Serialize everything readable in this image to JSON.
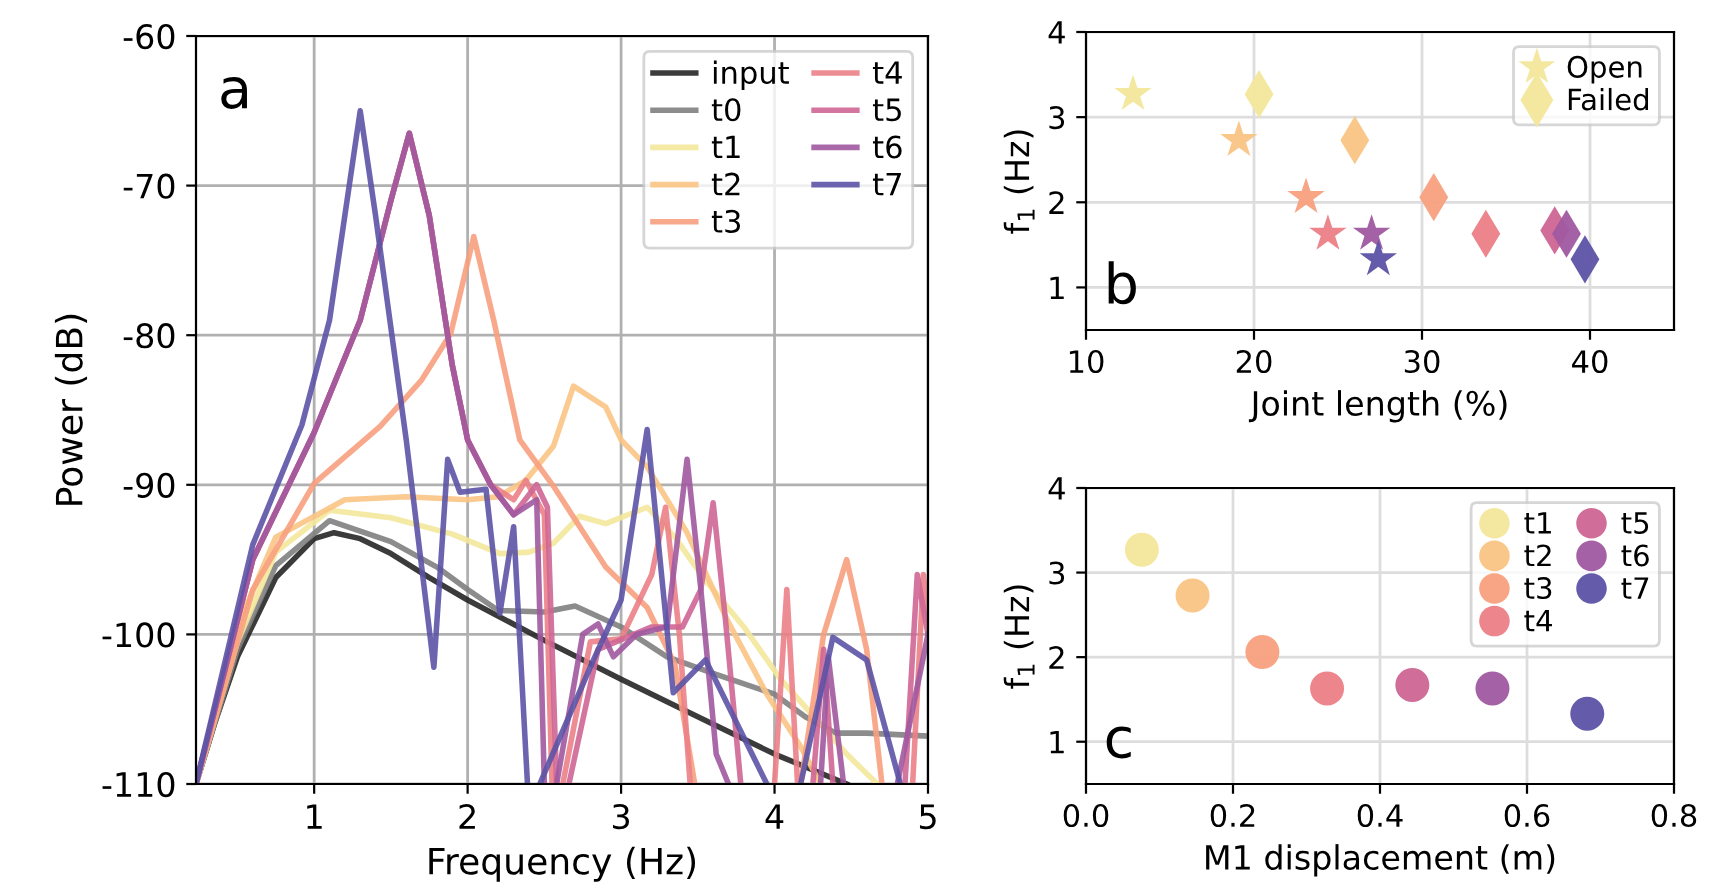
{
  "chart_data": [
    {
      "type": "line",
      "xlabel": "Frequency (Hz)",
      "ylabel": "Power (dB)",
      "xlim": [
        0.23,
        5
      ],
      "ylim": [
        -110,
        -60
      ],
      "xticks": [
        1,
        2,
        3,
        4,
        5
      ],
      "yticks": [
        -110,
        -100,
        -90,
        -80,
        -70,
        -60
      ],
      "grid": true,
      "legend": "top right",
      "annotations": [
        "a"
      ],
      "series": [
        {
          "name": "input",
          "color": "#262626",
          "x": [
            0.23,
            0.35,
            0.5,
            0.75,
            1.0,
            1.13,
            1.3,
            1.5,
            1.75,
            2.0,
            2.5,
            3.0,
            3.5,
            4.0,
            4.47
          ],
          "values": [
            -110,
            -106,
            -101.5,
            -96.2,
            -93.6,
            -93.2,
            -93.6,
            -94.6,
            -96.2,
            -97.7,
            -100.4,
            -103,
            -105.5,
            -108,
            -110
          ]
        },
        {
          "name": "t0",
          "color": "#808080",
          "x": [
            0.23,
            0.5,
            0.75,
            1.1,
            1.5,
            1.8,
            2.0,
            2.2,
            2.5,
            2.7,
            3.0,
            3.3,
            3.6,
            4.0,
            4.2,
            4.4,
            4.6,
            5.0
          ],
          "values": [
            -110,
            -101,
            -95.4,
            -92.4,
            -93.8,
            -95.5,
            -97,
            -98.4,
            -98.5,
            -98.1,
            -99.5,
            -101.5,
            -102.6,
            -104,
            -105.5,
            -106.6,
            -106.6,
            -106.8
          ]
        },
        {
          "name": "t1",
          "color": "#f3e79b",
          "x": [
            0.23,
            0.5,
            0.75,
            1.1,
            1.5,
            1.9,
            2.21,
            2.4,
            2.56,
            2.73,
            2.9,
            3.17,
            3.35,
            3.55,
            3.8,
            4.04,
            4.3,
            4.47,
            4.67
          ],
          "values": [
            -110,
            -100.5,
            -94.5,
            -91.7,
            -92.2,
            -93.3,
            -94.6,
            -94.5,
            -93.9,
            -92.1,
            -92.6,
            -91.5,
            -93.5,
            -96.4,
            -99.5,
            -103,
            -106,
            -108,
            -110
          ]
        },
        {
          "name": "t2",
          "color": "#fac484",
          "x": [
            0.23,
            0.5,
            0.75,
            1.2,
            1.6,
            2.0,
            2.2,
            2.38,
            2.56,
            2.69,
            2.9,
            3.0,
            3.17,
            3.43,
            3.69,
            3.95,
            4.17,
            4.3
          ],
          "values": [
            -110,
            -99.5,
            -93.5,
            -91,
            -90.8,
            -91,
            -90.8,
            -89.7,
            -87.4,
            -83.4,
            -84.8,
            -87,
            -88.8,
            -93.2,
            -99,
            -104,
            -107.5,
            -110
          ]
        },
        {
          "name": "t3",
          "color": "#f8a07e",
          "x": [
            0.23,
            0.6,
            1.0,
            1.43,
            1.7,
            1.89,
            2.04,
            2.17,
            2.34,
            2.56,
            2.9,
            3.17,
            3.35,
            3.48,
            null,
            4.17,
            4.32,
            4.47,
            4.6,
            4.7
          ],
          "values": [
            -110,
            -97,
            -89.9,
            -86.1,
            -83,
            -79.9,
            -73.4,
            -79,
            -87,
            -90.1,
            -95.5,
            -98.2,
            -102,
            -110,
            null,
            -110,
            -100,
            -95,
            -101,
            -110
          ]
        },
        {
          "name": "t4",
          "color": "#eb7f86",
          "x": [
            0.23,
            0.6,
            1.0,
            1.3,
            1.5,
            1.62,
            1.75,
            1.9,
            2.0,
            2.15,
            2.3,
            2.38,
            2.5,
            2.55,
            null,
            2.62,
            2.8,
            3.0,
            3.2,
            3.29,
            3.38,
            3.45,
            null,
            4.0,
            4.08,
            4.15,
            null,
            4.9,
            4.97,
            5.0
          ],
          "values": [
            -110,
            -95,
            -86.5,
            -79,
            -71,
            -66.5,
            -72,
            -82,
            -87,
            -90,
            -91,
            -89.7,
            -92,
            -110,
            null,
            -110,
            -100.5,
            -100.3,
            -96,
            -91.5,
            -100,
            -110,
            null,
            -110,
            -97,
            -110,
            null,
            -110,
            -96,
            -99
          ]
        },
        {
          "name": "t5",
          "color": "#ce6693",
          "x": [
            0.23,
            0.6,
            1.0,
            1.3,
            1.5,
            1.62,
            1.75,
            1.9,
            2.0,
            2.15,
            2.3,
            2.45,
            2.52,
            2.58,
            null,
            2.66,
            2.85,
            3.2,
            3.4,
            3.52,
            3.6,
            3.68,
            3.78,
            null,
            4.25,
            4.32,
            4.38,
            null,
            4.85,
            4.93,
            5.0
          ],
          "values": [
            -110,
            -95,
            -86.5,
            -79,
            -71,
            -66.5,
            -72,
            -82,
            -87,
            -90,
            -92,
            -90,
            -91.5,
            -110,
            null,
            -110,
            -101,
            -99.5,
            -99.5,
            -97,
            -91.2,
            -99,
            -110,
            null,
            -110,
            -101,
            -110,
            null,
            -110,
            -96,
            -100
          ]
        },
        {
          "name": "t6",
          "color": "#a059a0",
          "x": [
            0.23,
            0.6,
            1.0,
            1.3,
            1.5,
            1.62,
            1.75,
            1.9,
            2.0,
            2.15,
            2.3,
            2.45,
            2.5,
            null,
            2.58,
            2.75,
            2.85,
            2.95,
            3.1,
            3.3,
            3.43,
            3.52,
            3.62,
            3.7,
            null,
            4.3,
            4.35,
            4.45,
            null,
            4.8,
            5.0
          ],
          "values": [
            -110,
            -95,
            -86.5,
            -79,
            -71,
            -66.5,
            -72,
            -82,
            -87,
            -90,
            -92,
            -91,
            -110,
            null,
            -110,
            -100,
            -99.3,
            -101.5,
            -100,
            -99.5,
            -88.3,
            -97,
            -108,
            -110,
            null,
            -110,
            -101.5,
            -110,
            null,
            -110,
            -100
          ]
        },
        {
          "name": "t7",
          "color": "#5c53a5",
          "x": [
            0.23,
            0.6,
            0.92,
            1.1,
            1.2,
            1.3,
            1.4,
            1.6,
            1.78,
            1.87,
            1.95,
            2.12,
            2.21,
            2.3,
            2.39,
            null,
            2.47,
            2.82,
            3.0,
            3.17,
            3.34,
            3.55,
            3.95,
            null,
            4.17,
            4.38,
            4.6,
            4.82
          ],
          "values": [
            -110,
            -94,
            -86,
            -79,
            -72,
            -65,
            -72,
            -87,
            -102.2,
            -88.3,
            -90.5,
            -90.3,
            -98.6,
            -92.8,
            -110,
            null,
            -110,
            -101.7,
            -97.7,
            -86.3,
            -103.9,
            -101.7,
            -110,
            null,
            -110,
            -100.2,
            -101.7,
            -110
          ]
        }
      ]
    },
    {
      "type": "scatter",
      "xlabel": "Joint length (%)",
      "xlim": [
        10,
        45
      ],
      "ylim": [
        0.5,
        4
      ],
      "xticks": [
        10,
        20,
        30,
        40
      ],
      "yticks": [
        1,
        2,
        3,
        4
      ],
      "grid": true,
      "legend": "top right",
      "annotations": [
        "b"
      ],
      "ylabel": "f$_{1}$ (Hz)",
      "series": [
        {
          "name": "Open",
          "marker": "star",
          "color": "#f3e79b",
          "x": [
            12.8,
            19.1,
            23.1,
            24.4,
            26.7,
            27.0,
            27.4
          ],
          "values": [
            3.27,
            2.73,
            2.06,
            1.63,
            null,
            1.63,
            1.33
          ],
          "colors": [
            "#f3e79b",
            "#fac484",
            "#f8a07e",
            "#eb7f86",
            "#ce6693",
            "#a059a0",
            "#5c53a5"
          ]
        },
        {
          "name": "Failed",
          "marker": "diamond",
          "color": "#f3e79b",
          "x": [
            20.3,
            26.0,
            30.7,
            33.8,
            37.9,
            38.6,
            39.7
          ],
          "values": [
            3.27,
            2.73,
            2.06,
            1.63,
            1.67,
            1.63,
            1.33
          ],
          "colors": [
            "#f3e79b",
            "#fac484",
            "#f8a07e",
            "#eb7f86",
            "#ce6693",
            "#a059a0",
            "#5c53a5"
          ]
        }
      ]
    },
    {
      "type": "scatter",
      "xlabel": "M1 displacement (m)",
      "ylabel": "f$_{1}$ (Hz)",
      "xlim": [
        0,
        0.8
      ],
      "ylim": [
        0.5,
        4
      ],
      "xticks": [
        {
          "value": 0,
          "label": "0.0"
        },
        0.2,
        0.4,
        0.6,
        0.8
      ],
      "yticks": [
        1,
        2,
        3,
        4
      ],
      "grid": true,
      "legend": "top right",
      "marker": "circle",
      "annotations": [
        "c"
      ],
      "series": [
        {
          "name": "t1",
          "color": "#f3e79b",
          "x": [
            0.076
          ],
          "values": [
            3.27
          ]
        },
        {
          "name": "t2",
          "color": "#fac484",
          "x": [
            0.145
          ],
          "values": [
            2.73
          ]
        },
        {
          "name": "t3",
          "color": "#f8a07e",
          "x": [
            0.24
          ],
          "values": [
            2.06
          ]
        },
        {
          "name": "t4",
          "color": "#eb7f86",
          "x": [
            0.328
          ],
          "values": [
            1.63
          ]
        },
        {
          "name": "t5",
          "color": "#ce6693",
          "x": [
            0.444
          ],
          "values": [
            1.67
          ]
        },
        {
          "name": "t6",
          "color": "#a059a0",
          "x": [
            0.553
          ],
          "values": [
            1.63
          ]
        },
        {
          "name": "t7",
          "color": "#5c53a5",
          "x": [
            0.682
          ],
          "values": [
            1.33
          ]
        }
      ]
    }
  ]
}
